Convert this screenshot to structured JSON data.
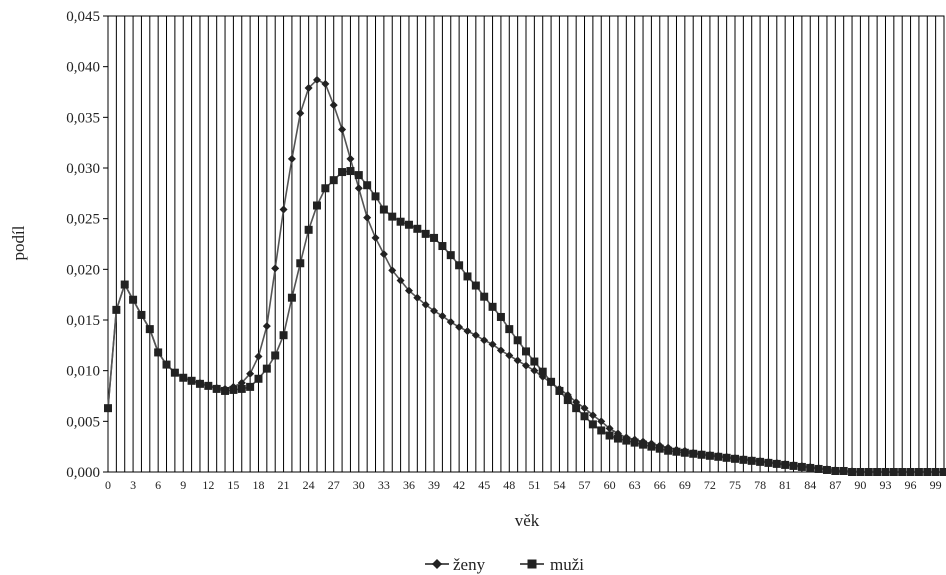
{
  "chart_data": {
    "type": "line",
    "title": "",
    "xlabel": "věk",
    "ylabel": "podíl",
    "xlim": [
      0,
      100
    ],
    "ylim": [
      0,
      0.045
    ],
    "grid": "vertical",
    "legend_position": "bottom",
    "x_tick_labels": [
      "0",
      "3",
      "6",
      "9",
      "12",
      "15",
      "18",
      "21",
      "24",
      "27",
      "30",
      "33",
      "36",
      "39",
      "42",
      "45",
      "48",
      "51",
      "54",
      "57",
      "60",
      "63",
      "66",
      "69",
      "72",
      "75",
      "78",
      "81",
      "84",
      "87",
      "90",
      "93",
      "96",
      "99"
    ],
    "y_tick_labels": [
      "0,000",
      "0,005",
      "0,010",
      "0,015",
      "0,020",
      "0,025",
      "0,030",
      "0,035",
      "0,040",
      "0,045"
    ],
    "series": [
      {
        "name": "ženy",
        "marker": "diamond",
        "values": [
          0.0063,
          0.016,
          0.0185,
          0.017,
          0.0155,
          0.0141,
          0.0118,
          0.0106,
          0.0098,
          0.0093,
          0.009,
          0.0088,
          0.0085,
          0.0083,
          0.0082,
          0.0084,
          0.0088,
          0.0097,
          0.0114,
          0.0144,
          0.0201,
          0.0259,
          0.0309,
          0.0354,
          0.0379,
          0.0387,
          0.0383,
          0.0362,
          0.0338,
          0.0309,
          0.028,
          0.0251,
          0.0231,
          0.0215,
          0.0199,
          0.0189,
          0.0179,
          0.0172,
          0.0165,
          0.0159,
          0.0154,
          0.0148,
          0.0143,
          0.0139,
          0.0135,
          0.013,
          0.0126,
          0.012,
          0.0115,
          0.011,
          0.0105,
          0.01,
          0.0094,
          0.0088,
          0.0082,
          0.0076,
          0.0069,
          0.0063,
          0.0056,
          0.005,
          0.0043,
          0.0038,
          0.0034,
          0.0032,
          0.003,
          0.0028,
          0.0026,
          0.0024,
          0.0022,
          0.0021,
          0.0019,
          0.0018,
          0.0017,
          0.0016,
          0.0015,
          0.0014,
          0.0013,
          0.0012,
          0.0011,
          0.001,
          0.0009,
          0.0008,
          0.0007,
          0.0006,
          0.0005,
          0.0004,
          0.0003,
          0.0002,
          0.0001,
          0.0001,
          0.0,
          0.0,
          0.0,
          0.0,
          0.0,
          0.0,
          0.0,
          0.0,
          0.0,
          0.0,
          0.0
        ]
      },
      {
        "name": "muži",
        "marker": "square",
        "values": [
          0.0063,
          0.016,
          0.0185,
          0.017,
          0.0155,
          0.0141,
          0.0118,
          0.0106,
          0.0098,
          0.0093,
          0.009,
          0.0087,
          0.0085,
          0.0082,
          0.008,
          0.0081,
          0.0082,
          0.0084,
          0.0092,
          0.0102,
          0.0115,
          0.0135,
          0.0172,
          0.0206,
          0.0239,
          0.0263,
          0.028,
          0.0288,
          0.0296,
          0.0297,
          0.0293,
          0.0283,
          0.0272,
          0.0259,
          0.0252,
          0.0247,
          0.0244,
          0.024,
          0.0235,
          0.0231,
          0.0223,
          0.0214,
          0.0204,
          0.0193,
          0.0184,
          0.0173,
          0.0163,
          0.0153,
          0.0141,
          0.013,
          0.0119,
          0.0109,
          0.0099,
          0.0089,
          0.008,
          0.0071,
          0.0063,
          0.0055,
          0.0047,
          0.0041,
          0.0036,
          0.0033,
          0.0031,
          0.0029,
          0.0027,
          0.0025,
          0.0023,
          0.0021,
          0.002,
          0.0019,
          0.0018,
          0.0017,
          0.0016,
          0.0015,
          0.0014,
          0.0013,
          0.0012,
          0.0011,
          0.001,
          0.0009,
          0.0008,
          0.0007,
          0.0006,
          0.0005,
          0.0004,
          0.0003,
          0.0002,
          0.0001,
          0.0001,
          0.0,
          0.0,
          0.0,
          0.0,
          0.0,
          0.0,
          0.0,
          0.0,
          0.0,
          0.0,
          0.0,
          0.0
        ]
      }
    ]
  }
}
